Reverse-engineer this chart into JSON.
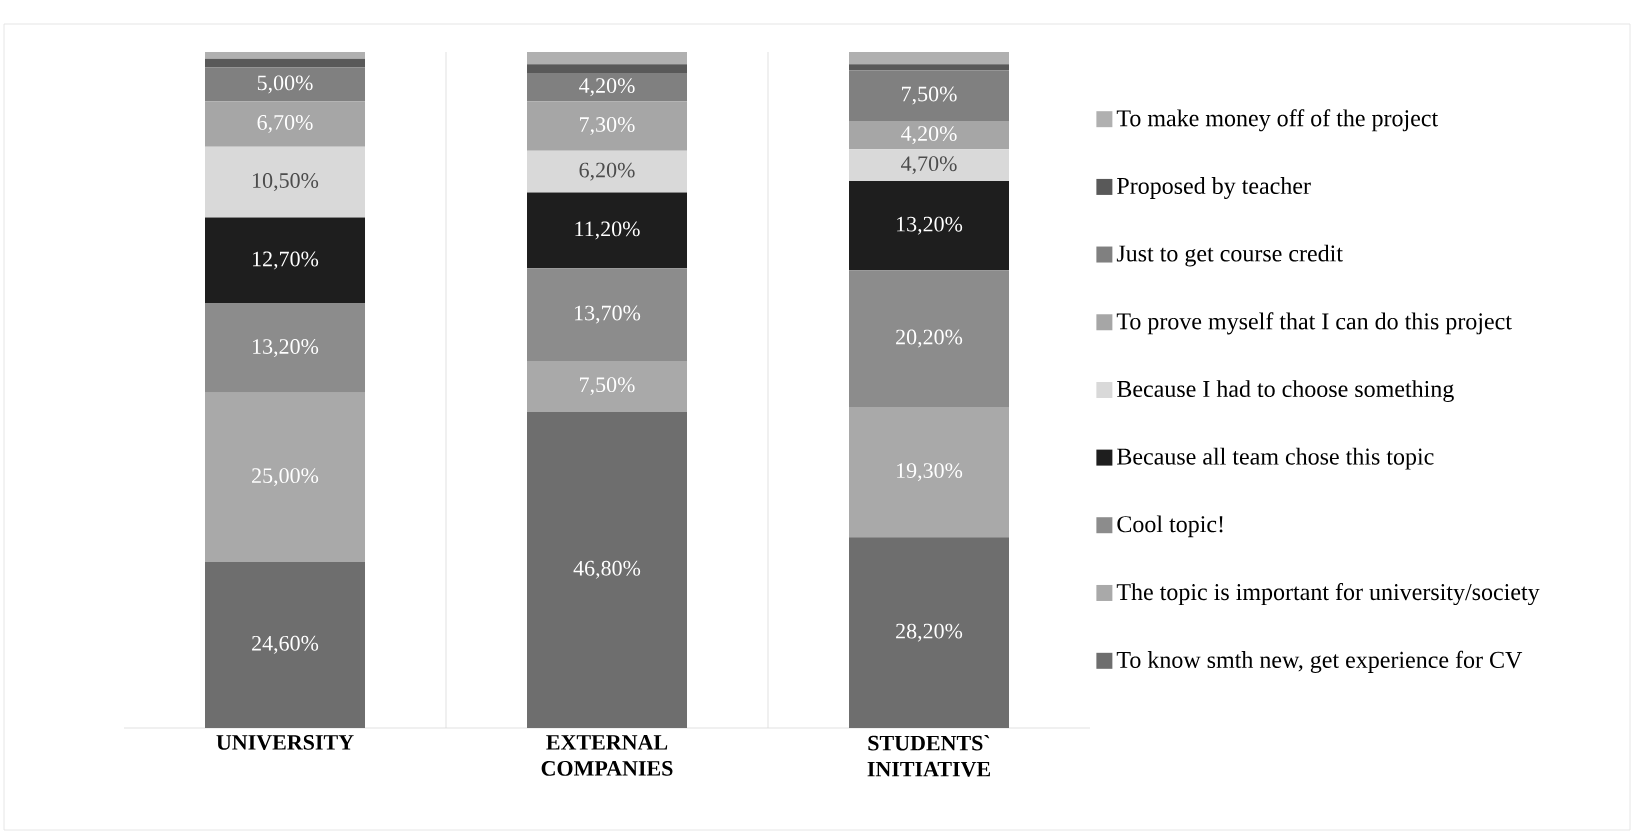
{
  "chart_data": {
    "type": "bar",
    "stacked": true,
    "categories": [
      "UNIVERSITY",
      "EXTERNAL COMPANIES",
      "STUDENTS` INITIATIVE"
    ],
    "legend": "right",
    "grid": "x",
    "series": [
      {
        "name": "To know smth new, get experience for CV",
        "color": "#6e6e6e",
        "values": [
          24.6,
          46.8,
          28.2
        ],
        "value_labels": [
          "24,60%",
          "46,80%",
          "28,20%"
        ]
      },
      {
        "name": "The topic is important for university/society",
        "color": "#a9a9a9",
        "values": [
          25.0,
          7.5,
          19.3
        ],
        "value_labels": [
          "25,00%",
          "7,50%",
          "19,30%"
        ]
      },
      {
        "name": "Cool topic!",
        "color": "#8c8c8c",
        "values": [
          13.2,
          13.7,
          20.2
        ],
        "value_labels": [
          "13,20%",
          "13,70%",
          "20,20%"
        ]
      },
      {
        "name": "Because all team chose this topic",
        "color": "#1e1e1e",
        "values": [
          12.7,
          11.2,
          13.2
        ],
        "value_labels": [
          "12,70%",
          "11,20%",
          "13,20%"
        ]
      },
      {
        "name": "Because I had to choose something",
        "color": "#d9d9d9",
        "values": [
          10.5,
          6.2,
          4.7
        ],
        "value_labels": [
          "10,50%",
          "6,20%",
          "4,70%"
        ]
      },
      {
        "name": "To prove myself that I can do this project",
        "color": "#a6a6a6",
        "values": [
          6.7,
          7.3,
          4.2
        ],
        "value_labels": [
          "6,70%",
          "7,30%",
          "4,20%"
        ]
      },
      {
        "name": "Just to get course credit",
        "color": "#808080",
        "values": [
          5.0,
          4.2,
          7.5
        ],
        "value_labels": [
          "5,00%",
          "4,20%",
          "7,50%"
        ]
      },
      {
        "name": "Proposed by teacher",
        "color": "#595959",
        "values": [
          1.3,
          1.3,
          0.9
        ],
        "value_labels": [
          null,
          null,
          null
        ]
      },
      {
        "name": "To make money off of the project",
        "color": "#b0b0b0",
        "values": [
          1.0,
          1.8,
          1.8
        ],
        "value_labels": [
          null,
          null,
          null
        ]
      }
    ]
  }
}
